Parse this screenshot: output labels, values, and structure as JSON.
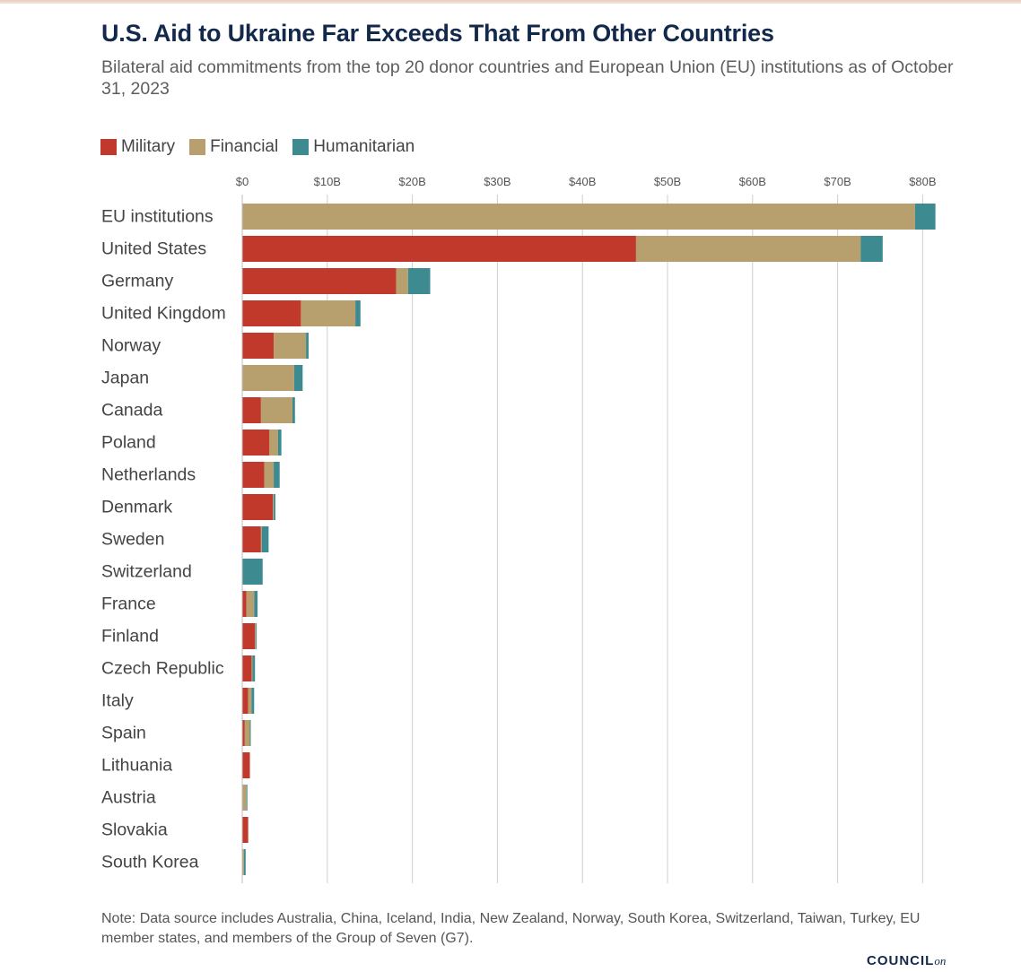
{
  "header": {
    "title": "U.S. Aid to Ukraine Far Exceeds That From Other Countries",
    "subtitle": "Bilateral aid commitments from the top 20 donor countries and European Union (EU) institutions as of October 31, 2023"
  },
  "legend": {
    "items": [
      {
        "label": "Military",
        "color": "#c0392b"
      },
      {
        "label": "Financial",
        "color": "#b8a06e"
      },
      {
        "label": "Humanitarian",
        "color": "#3d8a91"
      }
    ]
  },
  "chart_data": {
    "type": "bar",
    "orientation": "horizontal",
    "stacked": true,
    "xlim": [
      0,
      82
    ],
    "x_ticks": [
      0,
      10,
      20,
      30,
      40,
      50,
      60,
      70,
      80
    ],
    "x_tick_labels": [
      "$0",
      "$10B",
      "$20B",
      "$30B",
      "$40B",
      "$50B",
      "$60B",
      "$70B",
      "$80B"
    ],
    "grid": "vertical",
    "legend_position": "top-left",
    "categories": [
      "EU institutions",
      "United States",
      "Germany",
      "United Kingdom",
      "Norway",
      "Japan",
      "Canada",
      "Poland",
      "Netherlands",
      "Denmark",
      "Sweden",
      "Switzerland",
      "France",
      "Finland",
      "Czech Republic",
      "Italy",
      "Spain",
      "Lithuania",
      "Austria",
      "Slovakia",
      "South Korea"
    ],
    "series": [
      {
        "name": "Military",
        "color": "#c0392b",
        "values": [
          0,
          46.3,
          18.1,
          6.9,
          3.7,
          0,
          2.2,
          3.2,
          2.6,
          3.6,
          2.2,
          0,
          0.5,
          1.5,
          1.1,
          0.7,
          0.3,
          0.9,
          0,
          0.7,
          0
        ]
      },
      {
        "name": "Financial",
        "color": "#b8a06e",
        "values": [
          79.1,
          26.4,
          1.4,
          6.4,
          3.8,
          6.1,
          3.7,
          1.0,
          1.1,
          0.1,
          0.1,
          0,
          0.9,
          0.1,
          0.1,
          0.4,
          0.6,
          0,
          0.5,
          0,
          0.2
        ]
      },
      {
        "name": "Humanitarian",
        "color": "#3d8a91",
        "values": [
          2.4,
          2.6,
          2.6,
          0.6,
          0.3,
          1.0,
          0.3,
          0.4,
          0.7,
          0.2,
          0.8,
          2.4,
          0.4,
          0.1,
          0.3,
          0.3,
          0.1,
          0,
          0.1,
          0,
          0.2
        ]
      }
    ]
  },
  "footer": {
    "note": "Note: Data source includes Australia, China, Iceland, India, New Zealand, Norway, South Korea, Switzerland, Taiwan, Turkey, EU member states, and members of the Group of Seven (G7).",
    "logo_main": "COUNCIL",
    "logo_on": "on"
  }
}
